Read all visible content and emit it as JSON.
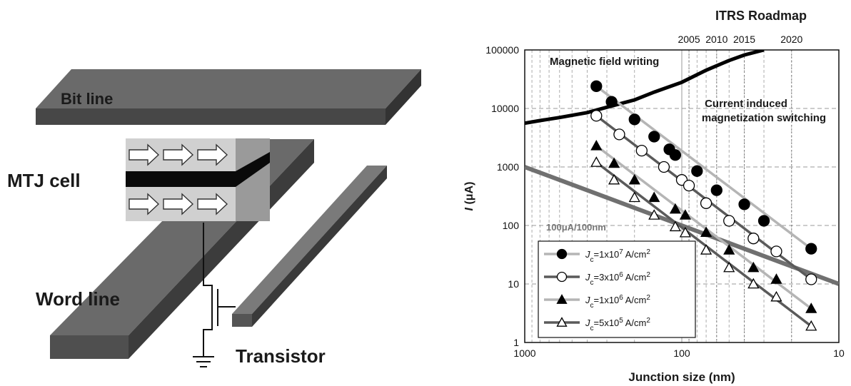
{
  "diagram": {
    "bit_line": "Bit line",
    "mtj_cell": "MTJ cell",
    "word_line": "Word line",
    "transistor": "Transistor"
  },
  "chart_data": {
    "type": "scatter",
    "title": "",
    "top_axis_title": "ITRS Roadmap",
    "top_axis_years": [
      {
        "label": "2005",
        "x": 90
      },
      {
        "label": "2010",
        "x": 60
      },
      {
        "label": "2015",
        "x": 40
      },
      {
        "label": "2020",
        "x": 20
      }
    ],
    "xlabel": "Junction size (nm)",
    "ylabel_var": "I",
    "ylabel_unit": " (μA)",
    "x_scale": "log-reversed",
    "y_scale": "log",
    "xlim": [
      1000,
      10
    ],
    "ylim": [
      1,
      100000
    ],
    "x_ticks": [
      {
        "v": 1000,
        "label": "1000"
      },
      {
        "v": 100,
        "label": "100"
      },
      {
        "v": 10,
        "label": "10"
      }
    ],
    "y_ticks": [
      {
        "v": 1,
        "label": "1"
      },
      {
        "v": 10,
        "label": "10"
      },
      {
        "v": 100,
        "label": "100"
      },
      {
        "v": 1000,
        "label": "1000"
      },
      {
        "v": 10000,
        "label": "10000"
      },
      {
        "v": 100000,
        "label": "100000"
      }
    ],
    "grid": true,
    "colors": {
      "black": "#000000",
      "thick_gray": "#707070",
      "light_gray": "#b5b5b5",
      "mid_gray": "#5a5a5a"
    },
    "curves": [
      {
        "name": "Magnetic field writing",
        "x": [
          1000,
          800,
          600,
          400,
          300,
          200,
          150,
          100,
          70,
          50,
          40,
          30
        ],
        "y": [
          5600,
          6200,
          7000,
          8500,
          10500,
          14000,
          19000,
          28000,
          45000,
          66000,
          82000,
          100000
        ]
      },
      {
        "name": "100μA/100nm",
        "x": [
          1000,
          100,
          10
        ],
        "y": [
          1000,
          100,
          10
        ]
      }
    ],
    "annotations": {
      "magnetic": "Magnetic field writing",
      "current_1": "Current induced",
      "current_2": "magnetization switching",
      "ref": "100μA/100nm"
    },
    "series": [
      {
        "jc_mant": "1x10",
        "jc_exp": "7",
        "unit": " A/cm",
        "unit_exp": "2",
        "marker": "filled-circle",
        "line_color": "#b5b5b5",
        "x": [
          350,
          280,
          200,
          150,
          120,
          110,
          80,
          60,
          40,
          30,
          15
        ],
        "y": [
          24000,
          13000,
          6500,
          3300,
          2000,
          1600,
          850,
          400,
          230,
          120,
          40
        ]
      },
      {
        "jc_mant": "3x10",
        "jc_exp": "6",
        "unit": " A/cm",
        "unit_exp": "2",
        "marker": "open-circle",
        "line_color": "#5a5a5a",
        "x": [
          350,
          250,
          180,
          130,
          100,
          90,
          70,
          50,
          35,
          25,
          15
        ],
        "y": [
          7500,
          3600,
          1900,
          1000,
          600,
          480,
          240,
          120,
          60,
          36,
          12
        ]
      },
      {
        "jc_mant": "1x10",
        "jc_exp": "6",
        "unit": " A/cm",
        "unit_exp": "2",
        "marker": "filled-triangle",
        "line_color": "#b5b5b5",
        "x": [
          350,
          270,
          200,
          150,
          110,
          95,
          70,
          50,
          35,
          25,
          15
        ],
        "y": [
          2300,
          1150,
          600,
          300,
          190,
          150,
          76,
          38,
          19,
          12,
          3.8
        ]
      },
      {
        "jc_mant": "5x10",
        "jc_exp": "5",
        "unit": " A/cm",
        "unit_exp": "2",
        "marker": "open-triangle",
        "line_color": "#5a5a5a",
        "x": [
          350,
          270,
          200,
          150,
          110,
          95,
          70,
          50,
          35,
          25,
          15
        ],
        "y": [
          1200,
          600,
          300,
          150,
          95,
          75,
          38,
          19,
          10,
          6,
          1.9
        ]
      }
    ]
  }
}
